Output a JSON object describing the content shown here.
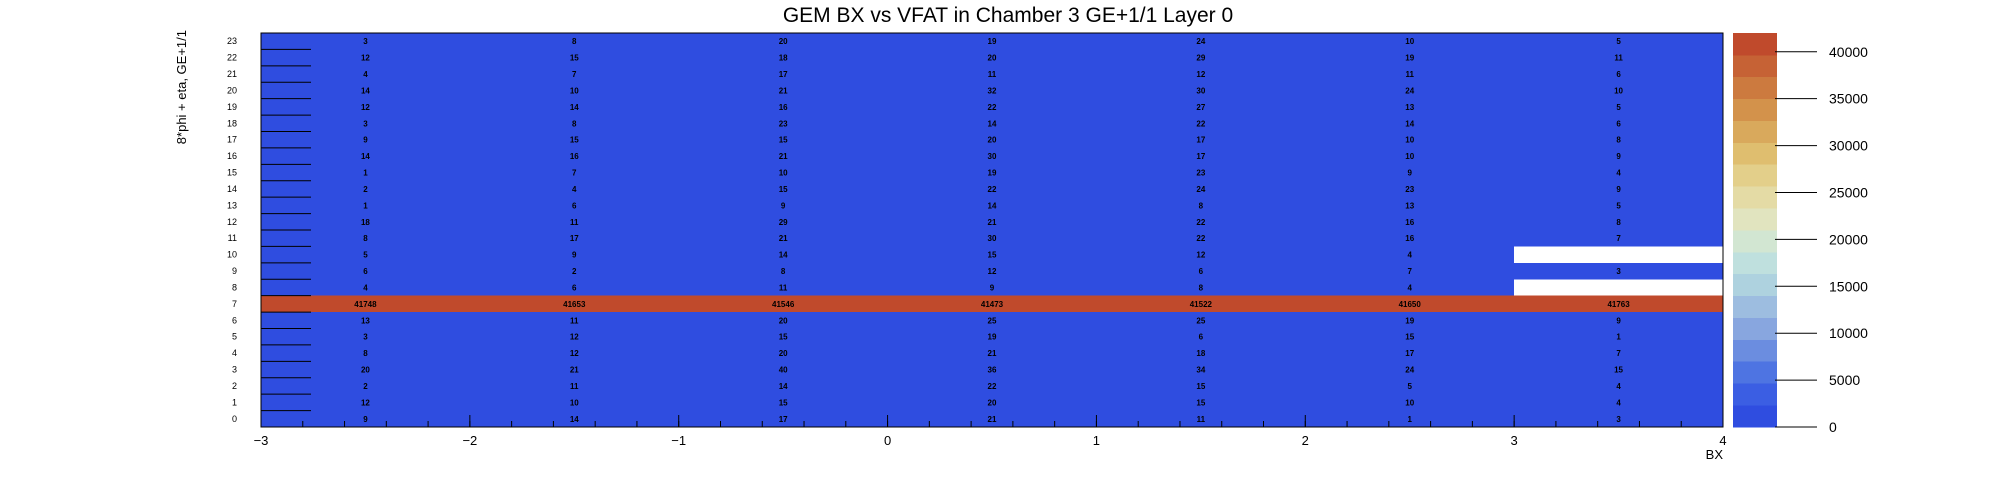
{
  "chart_data": {
    "type": "heatmap",
    "title": "GEM BX vs VFAT in Chamber 3 GE+1/1 Layer 0",
    "xlabel": "BX",
    "ylabel": "8*phi + eta, GE+1/1",
    "xlim": [
      -3,
      4
    ],
    "ylim": [
      0,
      24
    ],
    "zlim": [
      0,
      42000
    ],
    "x_ticks": [
      "−3",
      "−2",
      "−1",
      "0",
      "1",
      "2",
      "3",
      "4"
    ],
    "y_ticks": [
      "0",
      "1",
      "2",
      "3",
      "4",
      "5",
      "6",
      "7",
      "8",
      "9",
      "10",
      "11",
      "12",
      "13",
      "14",
      "15",
      "16",
      "17",
      "18",
      "19",
      "20",
      "21",
      "22",
      "23"
    ],
    "z_ticks": [
      "0",
      "5000",
      "10000",
      "15000",
      "20000",
      "25000",
      "30000",
      "35000",
      "40000"
    ],
    "grid": false,
    "colorbar": "right",
    "palette": [
      "#2f4de0",
      "#3b5ee3",
      "#4e74e2",
      "#6b8de0",
      "#88a6df",
      "#9dbde0",
      "#aed2df",
      "#bfe0de",
      "#d2e6d2",
      "#e1e4bf",
      "#e4dba5",
      "#e3cf8a",
      "#dfbe6f",
      "#d9a95c",
      "#d3924b",
      "#cc7a3f",
      "#c66235",
      "#c04a2c"
    ],
    "empty_color": "#ffffff",
    "bx_bins": [
      -2.5,
      -1.5,
      -0.5,
      0.5,
      1.5,
      2.5,
      3.5
    ],
    "cells": [
      {
        "y": 23,
        "values": [
          "3",
          "8",
          "20",
          "19",
          "24",
          "10",
          "5"
        ]
      },
      {
        "y": 22,
        "values": [
          "12",
          "15",
          "18",
          "20",
          "29",
          "19",
          "11"
        ]
      },
      {
        "y": 21,
        "values": [
          "4",
          "7",
          "17",
          "11",
          "12",
          "11",
          "6"
        ]
      },
      {
        "y": 20,
        "values": [
          "14",
          "10",
          "21",
          "32",
          "30",
          "24",
          "10"
        ]
      },
      {
        "y": 19,
        "values": [
          "12",
          "14",
          "16",
          "22",
          "27",
          "13",
          "5"
        ]
      },
      {
        "y": 18,
        "values": [
          "3",
          "8",
          "23",
          "14",
          "22",
          "14",
          "6"
        ]
      },
      {
        "y": 17,
        "values": [
          "9",
          "15",
          "15",
          "20",
          "17",
          "10",
          "8"
        ]
      },
      {
        "y": 16,
        "values": [
          "14",
          "16",
          "21",
          "30",
          "17",
          "10",
          "9"
        ]
      },
      {
        "y": 15,
        "values": [
          "1",
          "7",
          "10",
          "19",
          "23",
          "9",
          "4"
        ]
      },
      {
        "y": 14,
        "values": [
          "2",
          "4",
          "15",
          "22",
          "24",
          "23",
          "9"
        ]
      },
      {
        "y": 13,
        "values": [
          "1",
          "6",
          "9",
          "14",
          "8",
          "13",
          "5"
        ]
      },
      {
        "y": 12,
        "values": [
          "18",
          "11",
          "29",
          "21",
          "22",
          "16",
          "8"
        ]
      },
      {
        "y": 11,
        "values": [
          "8",
          "17",
          "21",
          "30",
          "22",
          "16",
          "7"
        ]
      },
      {
        "y": 10,
        "values": [
          "5",
          "9",
          "14",
          "15",
          "12",
          "4",
          ""
        ]
      },
      {
        "y": 9,
        "values": [
          "6",
          "2",
          "8",
          "12",
          "6",
          "7",
          "3"
        ]
      },
      {
        "y": 8,
        "values": [
          "4",
          "6",
          "11",
          "9",
          "8",
          "4",
          ""
        ]
      },
      {
        "y": 7,
        "values": [
          "41748",
          "41653",
          "41546",
          "41473",
          "41522",
          "41650",
          "41763"
        ]
      },
      {
        "y": 6,
        "values": [
          "13",
          "11",
          "20",
          "25",
          "25",
          "19",
          "9"
        ]
      },
      {
        "y": 5,
        "values": [
          "3",
          "12",
          "15",
          "19",
          "6",
          "15",
          "1"
        ]
      },
      {
        "y": 4,
        "values": [
          "8",
          "12",
          "20",
          "21",
          "18",
          "17",
          "7"
        ]
      },
      {
        "y": 3,
        "values": [
          "20",
          "21",
          "40",
          "36",
          "34",
          "24",
          "15"
        ]
      },
      {
        "y": 2,
        "values": [
          "2",
          "11",
          "14",
          "22",
          "15",
          "5",
          "4"
        ]
      },
      {
        "y": 1,
        "values": [
          "12",
          "10",
          "15",
          "20",
          "15",
          "10",
          "4"
        ]
      },
      {
        "y": 0,
        "values": [
          "9",
          "14",
          "17",
          "21",
          "11",
          "1",
          "3"
        ]
      }
    ]
  }
}
